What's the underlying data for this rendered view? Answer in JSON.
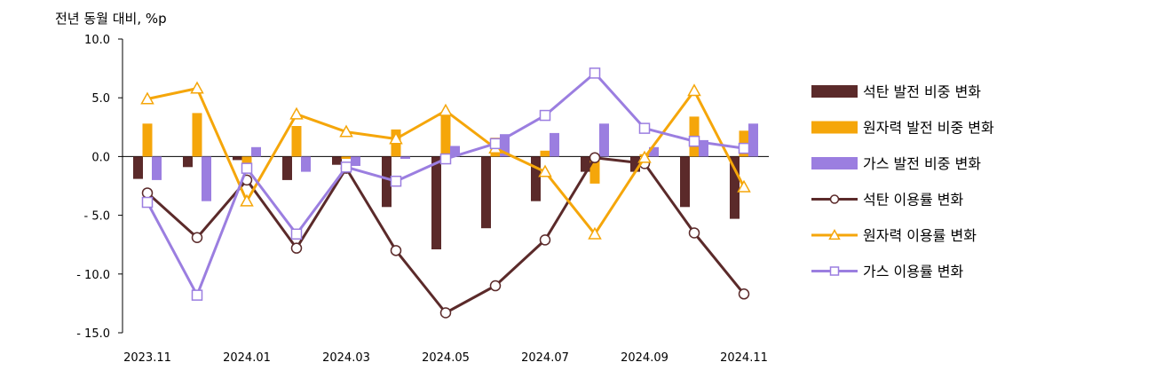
{
  "chart_data": {
    "type": "bar",
    "ylabel": "전년 동월 대비, %p",
    "ylim": [
      -15,
      10
    ],
    "yticks": [
      "10.0",
      "5.0",
      "0.0",
      "- 5.0",
      "- 10.0",
      "- 15.0"
    ],
    "ytick_values": [
      10,
      5,
      0,
      -5,
      -10,
      -15
    ],
    "xtick_labels": [
      "2023.11",
      "2024.01",
      "2024.03",
      "2024.05",
      "2024.07",
      "2024.09",
      "2024.11"
    ],
    "categories": [
      "2023.11",
      "2023.12",
      "2024.01",
      "2024.02",
      "2024.03",
      "2024.04",
      "2024.05",
      "2024.06",
      "2024.07",
      "2024.08",
      "2024.09",
      "2024.10",
      "2024.11"
    ],
    "grid": false,
    "legend_position": "right",
    "bar_series": [
      {
        "name": "석탄 발전 비중 변화",
        "color": "#5b2a2a",
        "values": [
          -1.9,
          -0.9,
          -0.3,
          -2.0,
          -0.7,
          -4.3,
          -7.9,
          -6.1,
          -3.8,
          -1.3,
          -1.3,
          -4.3,
          -5.3
        ]
      },
      {
        "name": "원자력 발전 비중 변화",
        "color": "#f5a60a",
        "values": [
          2.8,
          3.7,
          -0.6,
          2.6,
          -0.2,
          2.3,
          3.6,
          1.6,
          0.5,
          -2.3,
          0.2,
          3.4,
          2.2
        ]
      },
      {
        "name": "가스 발전 비중 변화",
        "color": "#9b7ee0",
        "values": [
          -2.0,
          -3.8,
          0.8,
          -1.3,
          -0.8,
          -0.2,
          0.9,
          1.9,
          2.0,
          2.8,
          0.8,
          1.4,
          2.8
        ]
      }
    ],
    "line_series": [
      {
        "name": "석탄 이용률 변화",
        "color": "#5b2a2a",
        "marker": "circle",
        "values": [
          -3.1,
          -6.9,
          -2.0,
          -7.8,
          -1.0,
          -8.0,
          -13.3,
          -11.0,
          -7.1,
          -0.1,
          -0.6,
          -6.5,
          -11.7
        ]
      },
      {
        "name": "원자력 이용률 변화",
        "color": "#f5a60a",
        "marker": "triangle",
        "values": [
          4.9,
          5.8,
          -3.8,
          3.6,
          2.1,
          1.5,
          3.9,
          0.7,
          -1.3,
          -6.6,
          -0.1,
          5.6,
          -2.6
        ]
      },
      {
        "name": "가스 이용률 변화",
        "color": "#9b7ee0",
        "marker": "square",
        "values": [
          -3.9,
          -11.8,
          -1.0,
          -6.6,
          -0.9,
          -2.1,
          -0.2,
          1.1,
          3.5,
          7.1,
          2.4,
          1.3,
          0.7
        ]
      }
    ]
  }
}
